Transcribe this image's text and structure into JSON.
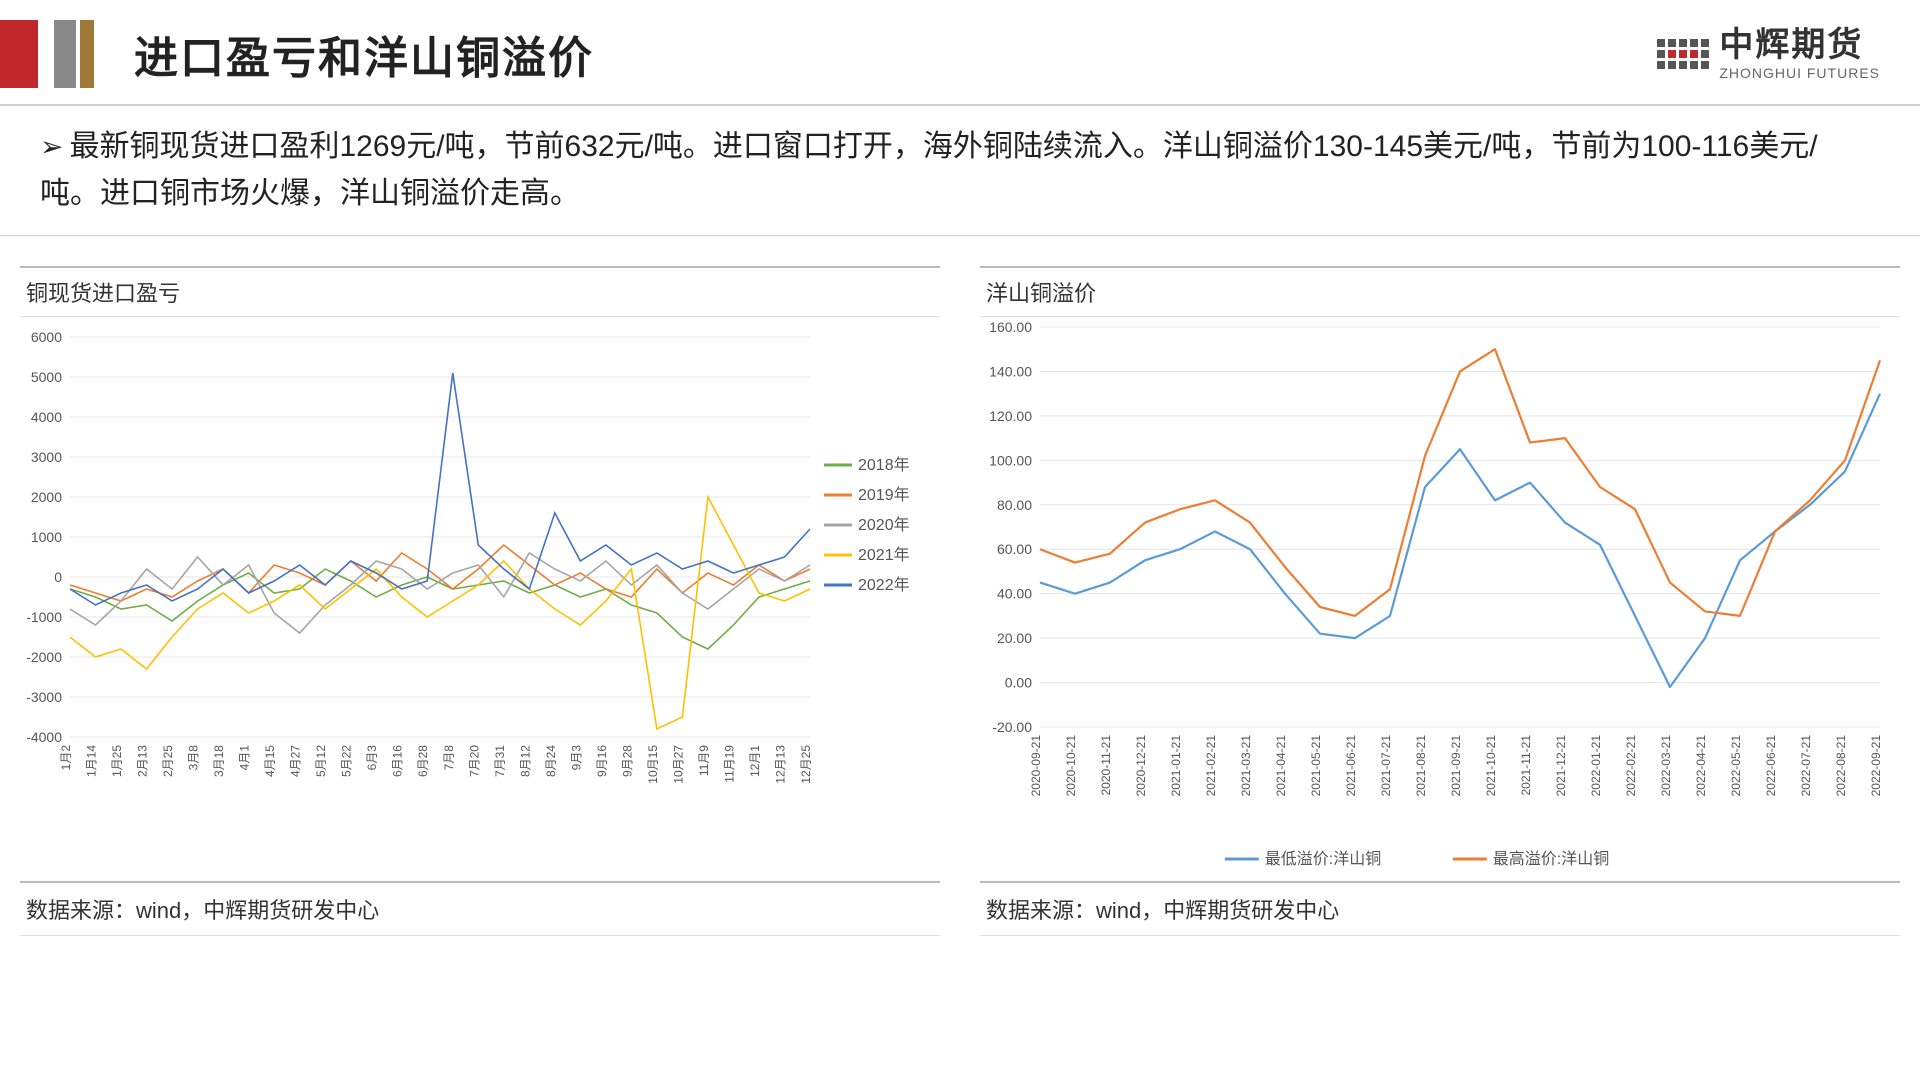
{
  "header": {
    "title": "进口盈亏和洋山铜溢价",
    "logo_cn": "中辉期货",
    "logo_en": "ZHONGHUI FUTURES"
  },
  "summary": {
    "text": "最新铜现货进口盈利1269元/吨，节前632元/吨。进口窗口打开，海外铜陆续流入。洋山铜溢价130-145美元/吨，节前为100-116美元/吨。进口铜市场火爆，洋山铜溢价走高。"
  },
  "chart_left": {
    "type": "line",
    "title": "铜现货进口盈亏",
    "source": "数据来源：wind，中辉期货研发中心",
    "ylim": [
      -4000,
      6000
    ],
    "ytick_step": 1000,
    "background_color": "#ffffff",
    "grid_color": "#e5e5e5",
    "x_labels": [
      "1月2",
      "1月14",
      "1月25",
      "2月13",
      "2月25",
      "3月8",
      "3月18",
      "4月1",
      "4月15",
      "4月27",
      "5月12",
      "5月22",
      "6月3",
      "6月16",
      "6月28",
      "7月8",
      "7月20",
      "7月31",
      "8月12",
      "8月24",
      "9月3",
      "9月16",
      "9月28",
      "10月15",
      "10月27",
      "11月9",
      "11月19",
      "12月1",
      "12月13",
      "12月25"
    ],
    "legend": [
      {
        "label": "2018年",
        "color": "#70ad47"
      },
      {
        "label": "2019年",
        "color": "#ed7d31"
      },
      {
        "label": "2020年",
        "color": "#a5a5a5"
      },
      {
        "label": "2021年",
        "color": "#ffc000"
      },
      {
        "label": "2022年",
        "color": "#4472c4"
      }
    ],
    "series": {
      "2018": [
        -300,
        -500,
        -800,
        -700,
        -1100,
        -600,
        -200,
        100,
        -400,
        -300,
        200,
        -100,
        -500,
        -200,
        0,
        -300,
        -200,
        -100,
        -400,
        -200,
        -500,
        -300,
        -700,
        -900,
        -1500,
        -1800,
        -1200,
        -500,
        -300,
        -100
      ],
      "2019": [
        -200,
        -400,
        -600,
        -300,
        -500,
        -100,
        200,
        -400,
        300,
        100,
        -200,
        400,
        -100,
        600,
        200,
        -300,
        200,
        800,
        300,
        -200,
        100,
        -300,
        -500,
        200,
        -400,
        100,
        -200,
        300,
        -100,
        200
      ],
      "2020": [
        -800,
        -1200,
        -600,
        200,
        -300,
        500,
        -200,
        300,
        -900,
        -1400,
        -700,
        -200,
        400,
        200,
        -300,
        100,
        300,
        -500,
        600,
        200,
        -100,
        400,
        -200,
        300,
        -400,
        -800,
        -300,
        200,
        -100,
        300
      ],
      "2021": [
        -1500,
        -2000,
        -1800,
        -2300,
        -1500,
        -800,
        -400,
        -900,
        -600,
        -200,
        -800,
        -300,
        200,
        -500,
        -1000,
        -600,
        -200,
        400,
        -300,
        -800,
        -1200,
        -600,
        200,
        -3800,
        -3500,
        2000,
        800,
        -400,
        -600,
        -300
      ],
      "2022": [
        -300,
        -700,
        -400,
        -200,
        -600,
        -300,
        200,
        -400,
        -100,
        300,
        -200,
        400,
        100,
        -300,
        -100,
        5100,
        800,
        200,
        -300,
        1600,
        400,
        800,
        300,
        600,
        200,
        400,
        100,
        300,
        500,
        1200
      ]
    },
    "line_width": 1.6
  },
  "chart_right": {
    "type": "line",
    "title": "洋山铜溢价",
    "source": "数据来源：wind，中辉期货研发中心",
    "ylim": [
      -20,
      160
    ],
    "ytick_step": 20,
    "background_color": "#ffffff",
    "grid_color": "#e5e5e5",
    "x_labels": [
      "2020-09-21",
      "2020-10-21",
      "2020-11-21",
      "2020-12-21",
      "2021-01-21",
      "2021-02-21",
      "2021-03-21",
      "2021-04-21",
      "2021-05-21",
      "2021-06-21",
      "2021-07-21",
      "2021-08-21",
      "2021-09-21",
      "2021-10-21",
      "2021-11-21",
      "2021-12-21",
      "2022-01-21",
      "2022-02-21",
      "2022-03-21",
      "2022-04-21",
      "2022-05-21",
      "2022-06-21",
      "2022-07-21",
      "2022-08-21",
      "2022-09-21"
    ],
    "legend": [
      {
        "label": "最低溢价:洋山铜",
        "color": "#5b9bd5"
      },
      {
        "label": "最高溢价:洋山铜",
        "color": "#ed7d31"
      }
    ],
    "series": {
      "low": [
        45,
        40,
        45,
        55,
        60,
        68,
        60,
        40,
        22,
        20,
        30,
        88,
        105,
        82,
        90,
        72,
        62,
        30,
        -2,
        20,
        55,
        68,
        80,
        95,
        130
      ],
      "high": [
        60,
        54,
        58,
        72,
        78,
        82,
        72,
        52,
        34,
        30,
        42,
        102,
        140,
        150,
        108,
        110,
        88,
        78,
        45,
        32,
        30,
        68,
        82,
        100,
        145
      ]
    },
    "line_width": 2.2
  }
}
